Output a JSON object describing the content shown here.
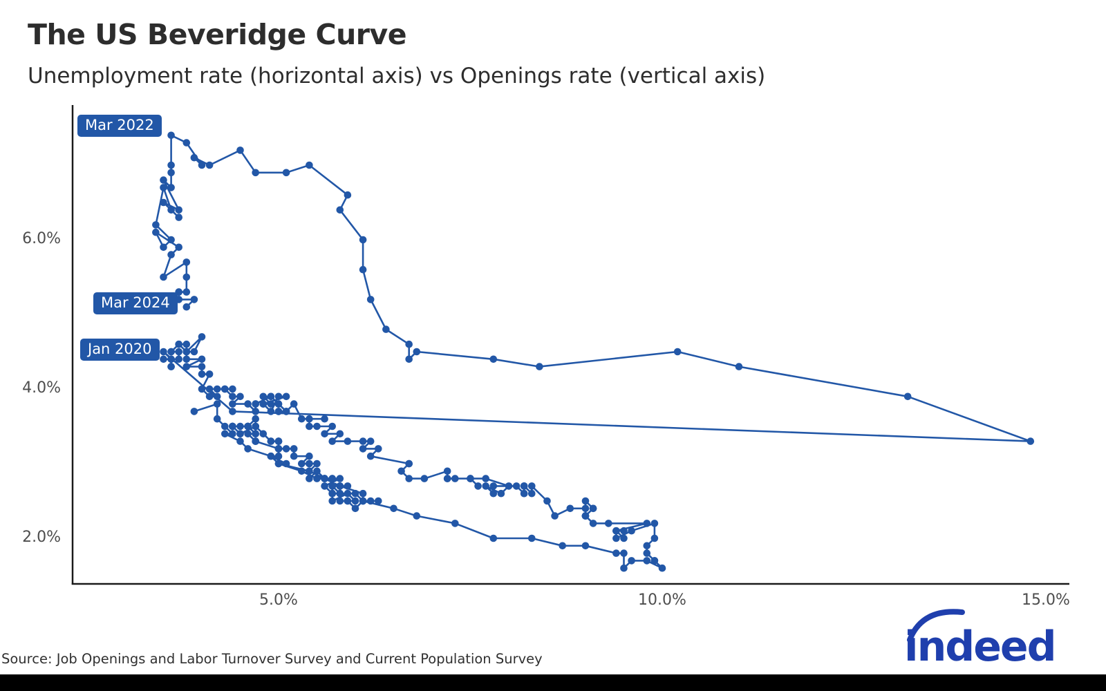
{
  "header": {
    "title": "The US Beveridge Curve",
    "subtitle": "Unemployment rate (horizontal axis) vs Openings rate (vertical axis)"
  },
  "footer": {
    "source": "Source: Job Openings and Labor Turnover Survey and Current Population Survey",
    "logo_text": "indeed"
  },
  "colors": {
    "line": "#2257a7",
    "point": "#2257a7",
    "annotation_bg": "#2257a7",
    "annotation_text": "#ffffff",
    "axis": "#1a1a1a",
    "tick_text": "#4d4d4d",
    "logo": "#1f3fad"
  },
  "annotations": [
    {
      "label": "Mar 2022",
      "date": "2022-03",
      "u": 3.6,
      "v": 7.4
    },
    {
      "label": "Mar 2024",
      "date": "2024-03",
      "u": 3.8,
      "v": 5.1
    },
    {
      "label": "Jan 2020",
      "date": "2020-01",
      "u": 3.6,
      "v": 4.4
    }
  ],
  "chart_data": {
    "type": "scatter",
    "title": "The US Beveridge Curve",
    "xlabel": "Unemployment rate",
    "ylabel": "Job openings rate",
    "xlim": [
      2.3,
      15.3
    ],
    "ylim": [
      1.4,
      7.8
    ],
    "grid": false,
    "x_axis": {
      "ticks": [
        {
          "v": 5,
          "label": "5.0%"
        },
        {
          "v": 10,
          "label": "10.0%"
        },
        {
          "v": 15,
          "label": "15.0%"
        }
      ]
    },
    "y_axis": {
      "ticks": [
        {
          "v": 2,
          "label": "2.0%"
        },
        {
          "v": 4,
          "label": "4.0%"
        },
        {
          "v": 6,
          "label": "6.0%"
        }
      ]
    },
    "series_note": "Monthly points [date, unemployment_rate_pct, openings_rate_pct], connected chronologically",
    "points": [
      [
        "2000-12",
        3.9,
        3.7
      ],
      [
        "2001-01",
        4.2,
        3.8
      ],
      [
        "2001-02",
        4.2,
        3.6
      ],
      [
        "2001-03",
        4.3,
        3.5
      ],
      [
        "2001-04",
        4.4,
        3.4
      ],
      [
        "2001-05",
        4.3,
        3.4
      ],
      [
        "2001-06",
        4.5,
        3.3
      ],
      [
        "2001-07",
        4.6,
        3.2
      ],
      [
        "2001-08",
        4.9,
        3.1
      ],
      [
        "2001-09",
        5.0,
        3.0
      ],
      [
        "2001-10",
        5.3,
        2.9
      ],
      [
        "2001-11",
        5.5,
        2.8
      ],
      [
        "2001-12",
        5.7,
        2.8
      ],
      [
        "2002-01",
        5.7,
        2.8
      ],
      [
        "2002-02",
        5.7,
        2.7
      ],
      [
        "2002-03",
        5.7,
        2.7
      ],
      [
        "2002-04",
        5.9,
        2.7
      ],
      [
        "2002-05",
        5.8,
        2.7
      ],
      [
        "2002-06",
        5.8,
        2.7
      ],
      [
        "2002-07",
        5.8,
        2.6
      ],
      [
        "2002-08",
        5.7,
        2.6
      ],
      [
        "2002-09",
        5.7,
        2.6
      ],
      [
        "2002-10",
        5.7,
        2.5
      ],
      [
        "2002-11",
        5.9,
        2.6
      ],
      [
        "2002-12",
        6.0,
        2.5
      ],
      [
        "2003-01",
        5.8,
        2.5
      ],
      [
        "2003-02",
        5.9,
        2.5
      ],
      [
        "2003-03",
        5.9,
        2.5
      ],
      [
        "2003-04",
        6.0,
        2.4
      ],
      [
        "2003-05",
        6.1,
        2.5
      ],
      [
        "2003-06",
        6.3,
        2.5
      ],
      [
        "2003-07",
        6.2,
        2.5
      ],
      [
        "2003-08",
        6.1,
        2.5
      ],
      [
        "2003-09",
        6.1,
        2.5
      ],
      [
        "2003-10",
        6.0,
        2.6
      ],
      [
        "2003-11",
        5.8,
        2.6
      ],
      [
        "2003-12",
        5.7,
        2.7
      ],
      [
        "2004-01",
        5.7,
        2.6
      ],
      [
        "2004-02",
        5.6,
        2.7
      ],
      [
        "2004-03",
        5.8,
        2.8
      ],
      [
        "2004-04",
        5.6,
        2.8
      ],
      [
        "2004-05",
        5.6,
        2.8
      ],
      [
        "2004-06",
        5.6,
        2.8
      ],
      [
        "2004-07",
        5.5,
        2.9
      ],
      [
        "2004-08",
        5.4,
        2.8
      ],
      [
        "2004-09",
        5.4,
        2.9
      ],
      [
        "2004-10",
        5.5,
        3.0
      ],
      [
        "2004-11",
        5.4,
        3.0
      ],
      [
        "2004-12",
        5.4,
        3.0
      ],
      [
        "2005-01",
        5.3,
        3.0
      ],
      [
        "2005-02",
        5.4,
        3.1
      ],
      [
        "2005-03",
        5.2,
        3.1
      ],
      [
        "2005-04",
        5.2,
        3.2
      ],
      [
        "2005-05",
        5.1,
        3.2
      ],
      [
        "2005-06",
        5.0,
        3.2
      ],
      [
        "2005-07",
        5.0,
        3.3
      ],
      [
        "2005-08",
        4.9,
        3.3
      ],
      [
        "2005-09",
        5.0,
        3.3
      ],
      [
        "2005-10",
        5.0,
        3.2
      ],
      [
        "2005-11",
        5.0,
        3.3
      ],
      [
        "2005-12",
        4.9,
        3.3
      ],
      [
        "2006-01",
        4.7,
        3.5
      ],
      [
        "2006-02",
        4.8,
        3.4
      ],
      [
        "2006-03",
        4.7,
        3.5
      ],
      [
        "2006-04",
        4.7,
        3.6
      ],
      [
        "2006-05",
        4.6,
        3.5
      ],
      [
        "2006-06",
        4.6,
        3.5
      ],
      [
        "2006-07",
        4.7,
        3.4
      ],
      [
        "2006-08",
        4.7,
        3.5
      ],
      [
        "2006-09",
        4.5,
        3.4
      ],
      [
        "2006-10",
        4.4,
        3.5
      ],
      [
        "2006-11",
        4.5,
        3.4
      ],
      [
        "2006-12",
        4.4,
        3.5
      ],
      [
        "2007-01",
        4.6,
        3.5
      ],
      [
        "2007-02",
        4.5,
        3.5
      ],
      [
        "2007-03",
        4.4,
        3.5
      ],
      [
        "2007-04",
        4.5,
        3.4
      ],
      [
        "2007-05",
        4.4,
        3.5
      ],
      [
        "2007-06",
        4.6,
        3.5
      ],
      [
        "2007-07",
        4.7,
        3.4
      ],
      [
        "2007-08",
        4.6,
        3.4
      ],
      [
        "2007-09",
        4.7,
        3.3
      ],
      [
        "2007-10",
        4.7,
        3.3
      ],
      [
        "2007-11",
        4.7,
        3.3
      ],
      [
        "2007-12",
        5.0,
        3.2
      ],
      [
        "2008-01",
        5.0,
        3.1
      ],
      [
        "2008-02",
        4.9,
        3.1
      ],
      [
        "2008-03",
        5.1,
        3.0
      ],
      [
        "2008-04",
        5.0,
        3.0
      ],
      [
        "2008-05",
        5.4,
        2.9
      ],
      [
        "2008-06",
        5.6,
        2.8
      ],
      [
        "2008-07",
        5.8,
        2.7
      ],
      [
        "2008-08",
        6.1,
        2.6
      ],
      [
        "2008-09",
        6.1,
        2.5
      ],
      [
        "2008-10",
        6.5,
        2.4
      ],
      [
        "2008-11",
        6.8,
        2.3
      ],
      [
        "2008-12",
        7.3,
        2.2
      ],
      [
        "2009-01",
        7.8,
        2.0
      ],
      [
        "2009-02",
        8.3,
        2.0
      ],
      [
        "2009-03",
        8.7,
        1.9
      ],
      [
        "2009-04",
        9.0,
        1.9
      ],
      [
        "2009-05",
        9.4,
        1.8
      ],
      [
        "2009-06",
        9.5,
        1.8
      ],
      [
        "2009-07",
        9.5,
        1.6
      ],
      [
        "2009-08",
        9.6,
        1.7
      ],
      [
        "2009-09",
        9.8,
        1.7
      ],
      [
        "2009-10",
        10.0,
        1.6
      ],
      [
        "2009-11",
        9.9,
        1.7
      ],
      [
        "2009-12",
        9.9,
        1.7
      ],
      [
        "2010-01",
        9.8,
        1.8
      ],
      [
        "2010-02",
        9.8,
        1.9
      ],
      [
        "2010-03",
        9.9,
        2.0
      ],
      [
        "2010-04",
        9.9,
        2.2
      ],
      [
        "2010-05",
        9.6,
        2.1
      ],
      [
        "2010-06",
        9.4,
        2.0
      ],
      [
        "2010-07",
        9.4,
        2.1
      ],
      [
        "2010-08",
        9.5,
        2.1
      ],
      [
        "2010-09",
        9.5,
        2.0
      ],
      [
        "2010-10",
        9.4,
        2.1
      ],
      [
        "2010-11",
        9.8,
        2.2
      ],
      [
        "2010-12",
        9.3,
        2.2
      ],
      [
        "2011-01",
        9.1,
        2.2
      ],
      [
        "2011-02",
        9.0,
        2.3
      ],
      [
        "2011-03",
        9.0,
        2.3
      ],
      [
        "2011-04",
        9.1,
        2.4
      ],
      [
        "2011-05",
        9.0,
        2.3
      ],
      [
        "2011-06",
        9.1,
        2.4
      ],
      [
        "2011-07",
        9.0,
        2.5
      ],
      [
        "2011-08",
        9.0,
        2.3
      ],
      [
        "2011-09",
        9.0,
        2.4
      ],
      [
        "2011-10",
        8.8,
        2.4
      ],
      [
        "2011-11",
        8.6,
        2.3
      ],
      [
        "2011-12",
        8.5,
        2.5
      ],
      [
        "2012-01",
        8.3,
        2.7
      ],
      [
        "2012-02",
        8.3,
        2.6
      ],
      [
        "2012-03",
        8.2,
        2.7
      ],
      [
        "2012-04",
        8.2,
        2.6
      ],
      [
        "2012-05",
        8.2,
        2.7
      ],
      [
        "2012-06",
        8.2,
        2.7
      ],
      [
        "2012-07",
        8.2,
        2.6
      ],
      [
        "2012-08",
        8.1,
        2.7
      ],
      [
        "2012-09",
        7.8,
        2.7
      ],
      [
        "2012-10",
        7.8,
        2.6
      ],
      [
        "2012-11",
        7.7,
        2.7
      ],
      [
        "2012-12",
        7.9,
        2.6
      ],
      [
        "2013-01",
        8.0,
        2.7
      ],
      [
        "2013-02",
        7.7,
        2.8
      ],
      [
        "2013-03",
        7.5,
        2.8
      ],
      [
        "2013-04",
        7.6,
        2.7
      ],
      [
        "2013-05",
        7.5,
        2.8
      ],
      [
        "2013-06",
        7.5,
        2.8
      ],
      [
        "2013-07",
        7.3,
        2.8
      ],
      [
        "2013-08",
        7.2,
        2.8
      ],
      [
        "2013-09",
        7.2,
        2.8
      ],
      [
        "2013-10",
        7.2,
        2.9
      ],
      [
        "2013-11",
        6.9,
        2.8
      ],
      [
        "2013-12",
        6.7,
        2.8
      ],
      [
        "2014-01",
        6.6,
        2.9
      ],
      [
        "2014-02",
        6.7,
        3.0
      ],
      [
        "2014-03",
        6.7,
        3.0
      ],
      [
        "2014-04",
        6.2,
        3.1
      ],
      [
        "2014-05",
        6.3,
        3.2
      ],
      [
        "2014-06",
        6.1,
        3.2
      ],
      [
        "2014-07",
        6.2,
        3.3
      ],
      [
        "2014-08",
        6.1,
        3.3
      ],
      [
        "2014-09",
        5.9,
        3.3
      ],
      [
        "2014-10",
        5.7,
        3.3
      ],
      [
        "2014-11",
        5.8,
        3.4
      ],
      [
        "2014-12",
        5.6,
        3.4
      ],
      [
        "2015-01",
        5.7,
        3.5
      ],
      [
        "2015-02",
        5.5,
        3.5
      ],
      [
        "2015-03",
        5.4,
        3.5
      ],
      [
        "2015-04",
        5.4,
        3.6
      ],
      [
        "2015-05",
        5.6,
        3.6
      ],
      [
        "2015-06",
        5.3,
        3.6
      ],
      [
        "2015-07",
        5.2,
        3.8
      ],
      [
        "2015-08",
        5.1,
        3.7
      ],
      [
        "2015-09",
        5.0,
        3.7
      ],
      [
        "2015-10",
        5.0,
        3.7
      ],
      [
        "2015-11",
        5.1,
        3.7
      ],
      [
        "2015-12",
        5.0,
        3.8
      ],
      [
        "2016-01",
        4.8,
        3.8
      ],
      [
        "2016-02",
        4.9,
        3.7
      ],
      [
        "2016-03",
        5.0,
        3.9
      ],
      [
        "2016-04",
        5.1,
        3.9
      ],
      [
        "2016-05",
        4.8,
        3.8
      ],
      [
        "2016-06",
        4.9,
        3.8
      ],
      [
        "2016-07",
        4.8,
        3.9
      ],
      [
        "2016-08",
        4.9,
        3.9
      ],
      [
        "2016-09",
        5.0,
        3.8
      ],
      [
        "2016-10",
        4.9,
        3.9
      ],
      [
        "2016-11",
        4.7,
        3.8
      ],
      [
        "2016-12",
        4.7,
        3.8
      ],
      [
        "2017-01",
        4.7,
        3.7
      ],
      [
        "2017-02",
        4.6,
        3.8
      ],
      [
        "2017-03",
        4.4,
        3.8
      ],
      [
        "2017-04",
        4.5,
        3.9
      ],
      [
        "2017-05",
        4.4,
        3.9
      ],
      [
        "2017-06",
        4.3,
        4.0
      ],
      [
        "2017-07",
        4.3,
        4.0
      ],
      [
        "2017-08",
        4.4,
        4.0
      ],
      [
        "2017-09",
        4.2,
        4.0
      ],
      [
        "2017-10",
        4.1,
        4.0
      ],
      [
        "2017-11",
        4.2,
        3.9
      ],
      [
        "2017-12",
        4.1,
        3.9
      ],
      [
        "2018-01",
        4.0,
        4.0
      ],
      [
        "2018-02",
        4.1,
        4.2
      ],
      [
        "2018-03",
        4.0,
        4.2
      ],
      [
        "2018-04",
        4.0,
        4.3
      ],
      [
        "2018-05",
        3.8,
        4.3
      ],
      [
        "2018-06",
        4.0,
        4.4
      ],
      [
        "2018-07",
        3.8,
        4.4
      ],
      [
        "2018-08",
        3.8,
        4.5
      ],
      [
        "2018-09",
        3.7,
        4.6
      ],
      [
        "2018-10",
        3.8,
        4.6
      ],
      [
        "2018-11",
        3.8,
        4.5
      ],
      [
        "2018-12",
        3.9,
        4.5
      ],
      [
        "2019-01",
        4.0,
        4.7
      ],
      [
        "2019-02",
        3.8,
        4.5
      ],
      [
        "2019-03",
        3.8,
        4.5
      ],
      [
        "2019-04",
        3.7,
        4.6
      ],
      [
        "2019-05",
        3.6,
        4.5
      ],
      [
        "2019-06",
        3.6,
        4.5
      ],
      [
        "2019-07",
        3.7,
        4.5
      ],
      [
        "2019-08",
        3.7,
        4.4
      ],
      [
        "2019-09",
        3.5,
        4.4
      ],
      [
        "2019-10",
        3.6,
        4.4
      ],
      [
        "2019-11",
        3.6,
        4.3
      ],
      [
        "2019-12",
        3.6,
        4.3
      ],
      [
        "2020-01",
        3.6,
        4.4
      ],
      [
        "2020-02",
        3.5,
        4.5
      ],
      [
        "2020-03",
        4.4,
        3.7
      ],
      [
        "2020-04",
        14.8,
        3.3
      ],
      [
        "2020-05",
        13.2,
        3.9
      ],
      [
        "2020-06",
        11.0,
        4.3
      ],
      [
        "2020-07",
        10.2,
        4.5
      ],
      [
        "2020-08",
        8.4,
        4.3
      ],
      [
        "2020-09",
        7.8,
        4.4
      ],
      [
        "2020-10",
        6.8,
        4.5
      ],
      [
        "2020-11",
        6.7,
        4.4
      ],
      [
        "2020-12",
        6.7,
        4.6
      ],
      [
        "2021-01",
        6.4,
        4.8
      ],
      [
        "2021-02",
        6.2,
        5.2
      ],
      [
        "2021-03",
        6.1,
        5.6
      ],
      [
        "2021-04",
        6.1,
        6.0
      ],
      [
        "2021-05",
        5.8,
        6.4
      ],
      [
        "2021-06",
        5.9,
        6.6
      ],
      [
        "2021-07",
        5.4,
        7.0
      ],
      [
        "2021-08",
        5.1,
        6.9
      ],
      [
        "2021-09",
        4.7,
        6.9
      ],
      [
        "2021-10",
        4.5,
        7.2
      ],
      [
        "2021-11",
        4.1,
        7.0
      ],
      [
        "2021-12",
        3.9,
        7.1
      ],
      [
        "2022-01",
        4.0,
        7.0
      ],
      [
        "2022-02",
        3.8,
        7.3
      ],
      [
        "2022-03",
        3.6,
        7.4
      ],
      [
        "2022-04",
        3.6,
        7.0
      ],
      [
        "2022-05",
        3.6,
        6.9
      ],
      [
        "2022-06",
        3.6,
        6.7
      ],
      [
        "2022-07",
        3.5,
        6.8
      ],
      [
        "2022-08",
        3.7,
        6.4
      ],
      [
        "2022-09",
        3.5,
        6.5
      ],
      [
        "2022-10",
        3.7,
        6.3
      ],
      [
        "2022-11",
        3.6,
        6.4
      ],
      [
        "2022-12",
        3.5,
        6.7
      ],
      [
        "2023-01",
        3.4,
        6.2
      ],
      [
        "2023-02",
        3.6,
        6.0
      ],
      [
        "2023-03",
        3.5,
        5.9
      ],
      [
        "2023-04",
        3.4,
        6.1
      ],
      [
        "2023-05",
        3.7,
        5.9
      ],
      [
        "2023-06",
        3.6,
        5.8
      ],
      [
        "2023-07",
        3.5,
        5.5
      ],
      [
        "2023-08",
        3.8,
        5.7
      ],
      [
        "2023-09",
        3.8,
        5.5
      ],
      [
        "2023-10",
        3.8,
        5.3
      ],
      [
        "2023-11",
        3.7,
        5.3
      ],
      [
        "2023-12",
        3.7,
        5.3
      ],
      [
        "2024-01",
        3.7,
        5.2
      ],
      [
        "2024-02",
        3.9,
        5.2
      ],
      [
        "2024-03",
        3.8,
        5.1
      ]
    ]
  }
}
